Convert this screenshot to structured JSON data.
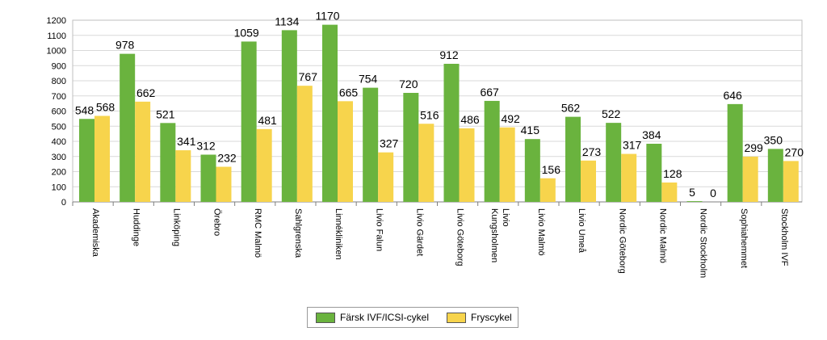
{
  "chart_data": {
    "type": "bar",
    "categories": [
      "Akademiska",
      "Huddinge",
      "Linköping",
      "Örebro",
      "RMC Malmö",
      "Sahlgrenska",
      "Linnékliniken",
      "Livio Falun",
      "Livio Gärdet",
      "Livio Göteborg",
      "Livio Kungsholmen",
      "Livio Malmö",
      "Livio Umeå",
      "Nordic Göteborg",
      "Nordic Malmö",
      "Nordic Stockholm",
      "Sophiahemmet",
      "Stockholm IVF"
    ],
    "series": [
      {
        "name": "Färsk IVF/ICSI-cykel",
        "color": "#6ab33e",
        "values": [
          548,
          978,
          521,
          312,
          1059,
          1134,
          1170,
          754,
          720,
          912,
          667,
          415,
          562,
          522,
          384,
          5,
          646,
          350
        ]
      },
      {
        "name": "Fryscykel",
        "color": "#f7d44c",
        "values": [
          568,
          662,
          341,
          232,
          481,
          767,
          665,
          327,
          516,
          486,
          492,
          156,
          273,
          317,
          128,
          0,
          299,
          270
        ]
      }
    ],
    "ylim": [
      0,
      1200
    ],
    "yticks": [
      0,
      100,
      200,
      300,
      400,
      500,
      600,
      700,
      800,
      900,
      1000,
      1100,
      1200
    ],
    "grid": true,
    "legend_position": "bottom",
    "title": "",
    "xlabel": "",
    "ylabel": ""
  }
}
